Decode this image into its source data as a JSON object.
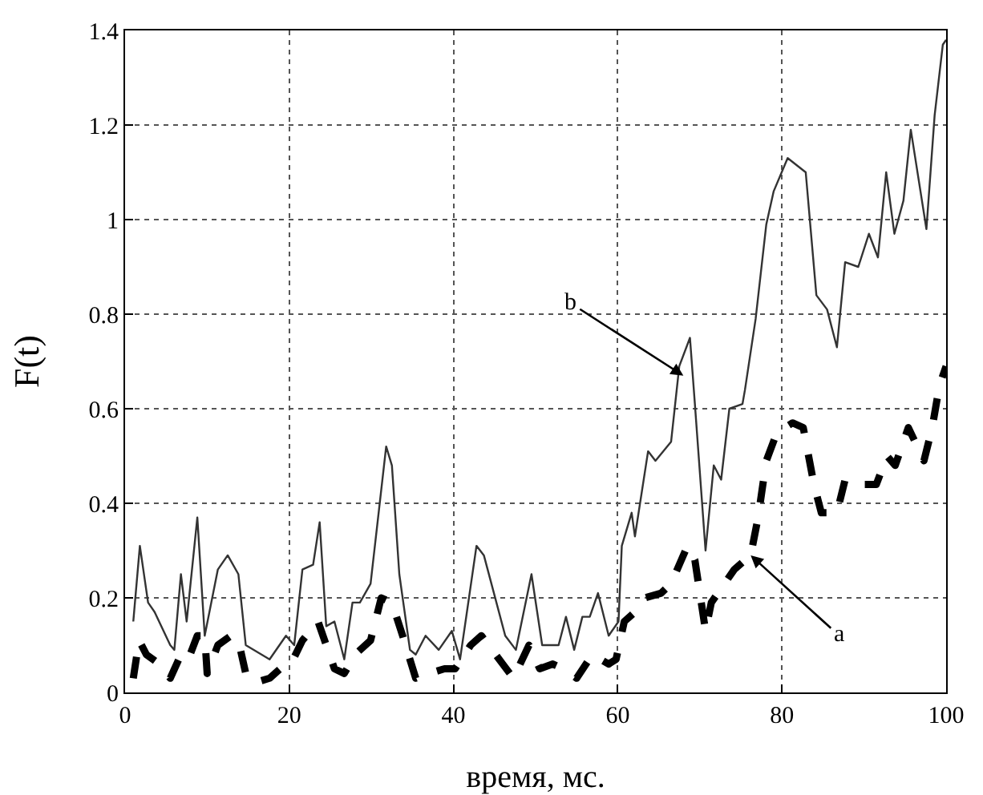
{
  "chart_data": {
    "type": "line",
    "xlabel": "время, мс.",
    "ylabel": "F(t)",
    "xlim": [
      0,
      100
    ],
    "ylim": [
      0,
      1.4
    ],
    "xticks": [
      0,
      20,
      40,
      60,
      80,
      100
    ],
    "yticks": [
      0,
      0.2,
      0.4,
      0.6,
      0.8,
      1,
      1.2,
      1.4
    ],
    "grid": true,
    "marker": "none",
    "series": [
      {
        "color": "#333333",
        "line_style": "solid",
        "x": [
          1,
          1.8,
          2.8,
          3.6,
          5.5,
          6,
          6.8,
          7.5,
          8.8,
          9.7,
          11.3,
          12.5,
          13.8,
          14.7,
          17.6,
          19.6,
          20.6,
          21.6,
          22.9,
          23.7,
          24.5,
          25.5,
          26.7,
          27.7,
          28.6,
          29.9,
          31.8,
          32.5,
          33.4,
          34.7,
          35.4,
          36.6,
          38.2,
          39.8,
          40.8,
          42.8,
          43.7,
          46.3,
          47.6,
          49.5,
          50.8,
          52.8,
          53.7,
          54.7,
          55.7,
          56.6,
          57.6,
          58.9,
          60.1,
          60.5,
          61.7,
          62.1,
          63.7,
          64.6,
          66.5,
          67.5,
          68.8,
          69.4,
          70.7,
          71.7,
          72.6,
          73.6,
          75.2,
          75.5,
          76.8,
          78.1,
          79,
          80.7,
          82.9,
          84.2,
          85.5,
          86.7,
          87.7,
          89.3,
          90.6,
          91.7,
          92.7,
          93.7,
          94.8,
          95.7,
          97.6,
          98.6,
          99.6,
          100
        ],
        "values": [
          0.15,
          0.31,
          0.19,
          0.17,
          0.1,
          0.09,
          0.25,
          0.15,
          0.37,
          0.12,
          0.26,
          0.29,
          0.25,
          0.1,
          0.07,
          0.12,
          0.1,
          0.26,
          0.27,
          0.36,
          0.14,
          0.15,
          0.07,
          0.19,
          0.19,
          0.23,
          0.52,
          0.48,
          0.25,
          0.09,
          0.08,
          0.12,
          0.09,
          0.13,
          0.07,
          0.31,
          0.29,
          0.12,
          0.09,
          0.25,
          0.1,
          0.1,
          0.16,
          0.09,
          0.16,
          0.16,
          0.21,
          0.12,
          0.15,
          0.31,
          0.38,
          0.33,
          0.51,
          0.49,
          0.53,
          0.69,
          0.75,
          0.61,
          0.3,
          0.48,
          0.45,
          0.6,
          0.61,
          0.64,
          0.79,
          0.99,
          1.06,
          1.13,
          1.1,
          0.84,
          0.81,
          0.73,
          0.91,
          0.9,
          0.97,
          0.92,
          1.1,
          0.97,
          1.04,
          1.19,
          0.98,
          1.22,
          1.37,
          1.38
        ]
      },
      {
        "color": "#000000",
        "line_style": "dashed",
        "x": [
          1,
          1.7,
          2.6,
          4.2,
          5.5,
          6.8,
          7.7,
          8.8,
          9.7,
          10,
          11.3,
          12.9,
          13.8,
          14.7,
          15.7,
          17.6,
          18.9,
          20.2,
          21.6,
          23.5,
          24.5,
          25.5,
          26.7,
          28,
          29.9,
          31.2,
          32.5,
          33.8,
          35.4,
          37,
          38.9,
          40.2,
          42.1,
          43.4,
          46,
          47.3,
          49.2,
          50.5,
          52.1,
          53.4,
          55,
          56.9,
          58.9,
          59.8,
          60.8,
          62.1,
          63.3,
          65.3,
          66.5,
          68.5,
          69.4,
          70.7,
          71.4,
          73,
          74.2,
          76.2,
          77.1,
          78.1,
          79.4,
          81.3,
          82.6,
          83.9,
          84.8,
          86.7,
          87.7,
          89.6,
          91.5,
          92.8,
          93.8,
          95.4,
          97.3,
          98.3,
          99.2,
          100
        ],
        "values": [
          0.03,
          0.11,
          0.08,
          0.06,
          0.03,
          0.08,
          0.07,
          0.12,
          0.12,
          0.04,
          0.1,
          0.12,
          0.11,
          0.04,
          0.02,
          0.03,
          0.05,
          0.06,
          0.11,
          0.15,
          0.1,
          0.05,
          0.04,
          0.08,
          0.11,
          0.2,
          0.19,
          0.12,
          0.03,
          0.04,
          0.05,
          0.05,
          0.1,
          0.12,
          0.06,
          0.03,
          0.1,
          0.05,
          0.06,
          0.05,
          0.03,
          0.08,
          0.06,
          0.07,
          0.15,
          0.17,
          0.2,
          0.21,
          0.23,
          0.31,
          0.28,
          0.13,
          0.19,
          0.23,
          0.26,
          0.29,
          0.37,
          0.49,
          0.55,
          0.57,
          0.56,
          0.44,
          0.38,
          0.38,
          0.45,
          0.44,
          0.44,
          0.5,
          0.48,
          0.56,
          0.49,
          0.56,
          0.65,
          0.69
        ]
      }
    ],
    "annotations": [
      {
        "text": "b",
        "x": 68,
        "y": 0.67
      },
      {
        "text": "a",
        "x": 76.2,
        "y": 0.29
      }
    ]
  }
}
